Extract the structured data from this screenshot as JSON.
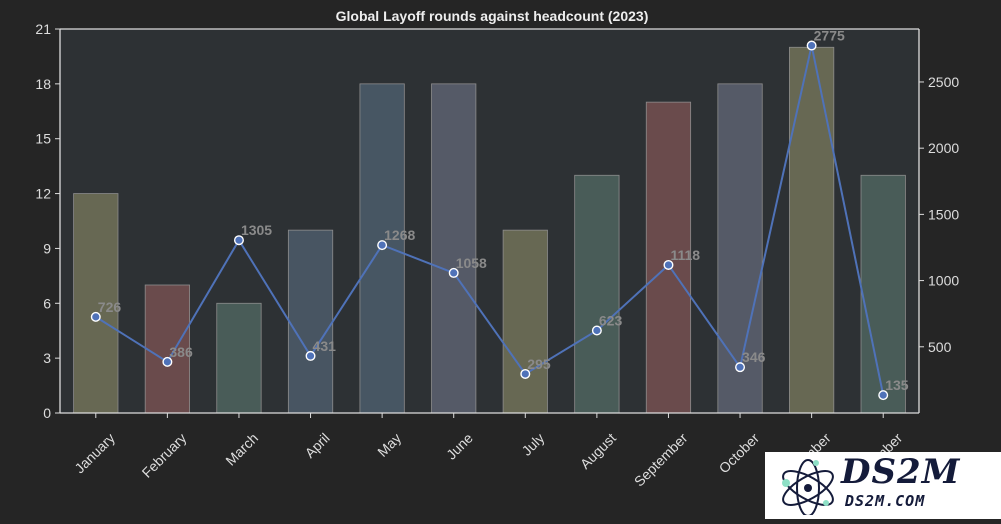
{
  "chart_data": {
    "type": "bar",
    "title": "Global Layoff rounds against headcount (2023)",
    "categories": [
      "January",
      "February",
      "March",
      "April",
      "May",
      "June",
      "July",
      "August",
      "September",
      "October",
      "November",
      "December"
    ],
    "series": [
      {
        "axis": "left",
        "values": [
          12,
          7,
          6,
          10,
          18,
          18,
          10,
          13,
          17,
          18,
          20,
          13
        ],
        "colors": [
          "#676853",
          "#6a4b4c",
          "#495c58",
          "#485562",
          "#475663",
          "#555a67",
          "#676853",
          "#495c58",
          "#6a4b4c",
          "#555a67",
          "#676853",
          "#495c58"
        ]
      },
      {
        "axis": "right",
        "type": "line",
        "values": [
          726,
          386,
          1305,
          431,
          1268,
          1058,
          295,
          623,
          1118,
          346,
          2775,
          135
        ],
        "color": "#4f72b8"
      }
    ],
    "ylim_left": [
      0,
      21
    ],
    "yticks_left": [
      "0",
      "3",
      "6",
      "9",
      "12",
      "15",
      "18",
      "21"
    ],
    "ylim_right": [
      0,
      2900
    ],
    "yticks_right": [
      "500",
      "1000",
      "1500",
      "2000",
      "2500"
    ],
    "grid": false
  },
  "watermark": {
    "brand": "DS2M",
    "domain": "DS2M.COM"
  }
}
